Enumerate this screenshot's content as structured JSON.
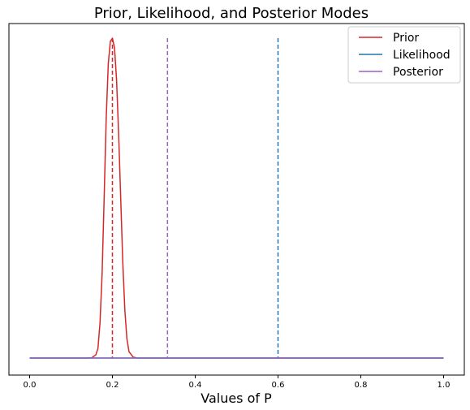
{
  "chart_data": {
    "type": "line",
    "title": "Prior, Likelihood, and Posterior Modes",
    "xlabel": "Values of P",
    "ylabel": "",
    "xlim": [
      -0.05,
      1.05
    ],
    "xticks": [
      "0.0",
      "0.2",
      "0.4",
      "0.6",
      "0.8",
      "1.0"
    ],
    "xtick_values": [
      0.0,
      0.2,
      0.4,
      0.6,
      0.8,
      1.0
    ],
    "y_ticks_shown": false,
    "grid": false,
    "legend_position": "top-right",
    "series": [
      {
        "name": "Prior",
        "color": "#d62728",
        "style": "solid",
        "x": [
          0.0,
          0.14,
          0.15,
          0.16,
          0.165,
          0.17,
          0.175,
          0.18,
          0.185,
          0.19,
          0.195,
          0.2,
          0.205,
          0.21,
          0.215,
          0.22,
          0.225,
          0.23,
          0.235,
          0.24,
          0.25,
          0.26,
          1.0
        ],
        "y": [
          0.0,
          0.0,
          0.001,
          0.01,
          0.03,
          0.11,
          0.26,
          0.5,
          0.75,
          0.92,
          0.99,
          1.0,
          0.97,
          0.87,
          0.7,
          0.5,
          0.3,
          0.15,
          0.06,
          0.02,
          0.003,
          0.0,
          0.0
        ]
      },
      {
        "name": "Likelihood",
        "color": "#1f77b4",
        "style": "solid",
        "x": [
          0.0,
          1.0
        ],
        "y": [
          0.0,
          0.0
        ]
      },
      {
        "name": "Posterior",
        "color": "#9467bd",
        "style": "solid",
        "x": [
          0.0,
          1.0
        ],
        "y": [
          0.0,
          0.0
        ]
      }
    ],
    "mode_lines": [
      {
        "x": 0.2,
        "color": "#d62728",
        "style": "dashed"
      },
      {
        "x": 0.6,
        "color": "#1f77b4",
        "style": "dashed"
      },
      {
        "x": 0.333,
        "color": "#9467bd",
        "style": "dashed"
      }
    ]
  }
}
